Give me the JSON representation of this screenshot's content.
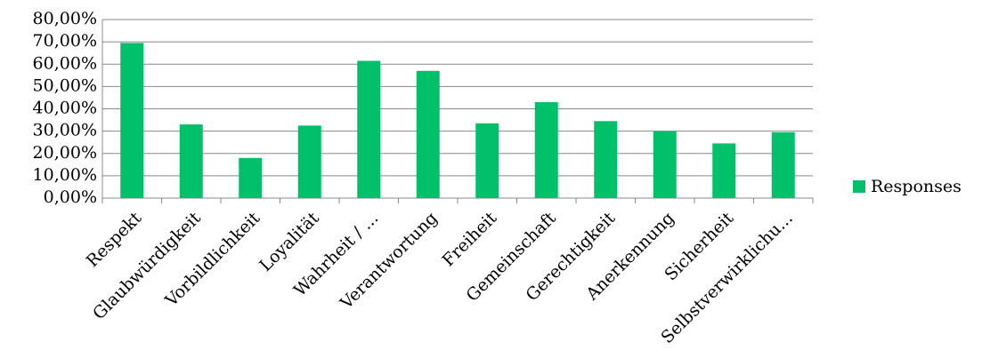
{
  "chart_data": {
    "type": "bar",
    "categories": [
      "Respekt",
      "Glaubwürdigkeit",
      "Vorbildlichkeit",
      "Loyalität",
      "Wahrheit / ...",
      "Verantwortung",
      "Freiheit",
      "Gemeinschaft",
      "Gerechtigkeit",
      "Anerkennung",
      "Sicherheit",
      "Selbstverwirklichu..."
    ],
    "series": [
      {
        "name": "Responses",
        "color": "#00c06a",
        "values": [
          69.5,
          33,
          18,
          32.5,
          61.5,
          57,
          33.5,
          43,
          34.5,
          30,
          24.5,
          29.5
        ]
      }
    ],
    "ylim": [
      0,
      80
    ],
    "yticks": [
      {
        "value": 0,
        "label": "0,00%"
      },
      {
        "value": 10,
        "label": "10,00%"
      },
      {
        "value": 20,
        "label": "20,00%"
      },
      {
        "value": 30,
        "label": "30,00%"
      },
      {
        "value": 40,
        "label": "40,00%"
      },
      {
        "value": 50,
        "label": "50,00%"
      },
      {
        "value": 60,
        "label": "60,00%"
      },
      {
        "value": 70,
        "label": "70,00%"
      },
      {
        "value": 80,
        "label": "80,00%"
      }
    ],
    "grid": true,
    "legend": "right"
  }
}
